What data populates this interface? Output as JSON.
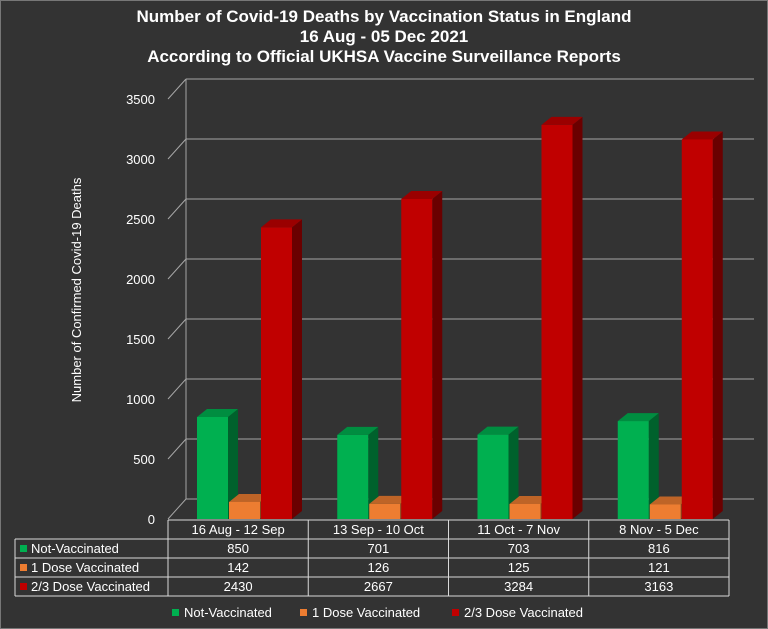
{
  "chart_data": {
    "type": "bar",
    "title_lines": [
      "Number of Covid-19 Deaths by Vaccination Status in England",
      "16 Aug - 05 Dec 2021",
      "According to Official UKHSA Vaccine Surveillance Reports"
    ],
    "ylabel": "Number of Confirmed Covid-19 Deaths",
    "xlabel": "",
    "ylim": [
      0,
      3500
    ],
    "yticks": [
      "0",
      "500",
      "1000",
      "1500",
      "2000",
      "2500",
      "3000",
      "3500"
    ],
    "categories": [
      "16 Aug - 12 Sep",
      "13 Sep - 10 Oct",
      "11 Oct - 7 Nov",
      "8 Nov - 5 Dec"
    ],
    "series": [
      {
        "name": "Not-Vaccinated",
        "values": [
          850,
          701,
          703,
          816
        ],
        "color": "#00b050"
      },
      {
        "name": "1 Dose Vaccinated",
        "values": [
          142,
          126,
          125,
          121
        ],
        "color": "#ed7d31"
      },
      {
        "name": "2/3 Dose Vaccinated",
        "values": [
          2430,
          2667,
          3284,
          3163
        ],
        "color": "#c00000"
      }
    ],
    "data_table": true,
    "grid": true,
    "legend": "bottom",
    "style": "3d-clustered-column"
  }
}
